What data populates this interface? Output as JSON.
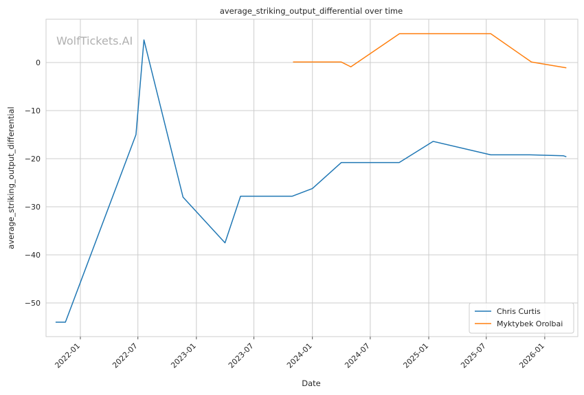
{
  "chart_data": {
    "type": "line",
    "title": "average_striking_output_differential over time",
    "xlabel": "Date",
    "ylabel": "average_striking_output_differential",
    "watermark": "WolfTickets.AI",
    "x_ticks": [
      "2022-01",
      "2022-07",
      "2023-01",
      "2023-07",
      "2024-01",
      "2024-07",
      "2025-01",
      "2025-07",
      "2026-01"
    ],
    "y_ticks": [
      -50,
      -40,
      -30,
      -20,
      -10,
      0
    ],
    "xlim": [
      "2021-09-15",
      "2026-04-15"
    ],
    "ylim": [
      -57,
      9
    ],
    "grid": true,
    "legend_position": "lower-right",
    "series": [
      {
        "name": "Chris Curtis",
        "color": "#1f77b4",
        "points": [
          [
            "2021-10-15",
            -54
          ],
          [
            "2021-11-15",
            -54
          ],
          [
            "2022-06-25",
            -15
          ],
          [
            "2022-07-20",
            4.7
          ],
          [
            "2022-11-20",
            -28
          ],
          [
            "2023-04-01",
            -37.5
          ],
          [
            "2023-05-20",
            -27.8
          ],
          [
            "2023-10-30",
            -27.8
          ],
          [
            "2024-01-01",
            -26.2
          ],
          [
            "2024-04-01",
            -20.8
          ],
          [
            "2024-09-30",
            -20.8
          ],
          [
            "2025-01-15",
            -16.4
          ],
          [
            "2025-07-15",
            -19.2
          ],
          [
            "2025-11-15",
            -19.2
          ],
          [
            "2026-03-01",
            -19.4
          ],
          [
            "2026-03-10",
            -19.6
          ]
        ]
      },
      {
        "name": "Myktybek Orolbai",
        "color": "#ff7f0e",
        "points": [
          [
            "2023-11-01",
            0.1
          ],
          [
            "2024-04-01",
            0.1
          ],
          [
            "2024-05-01",
            -0.9
          ],
          [
            "2024-10-01",
            6.0
          ],
          [
            "2025-07-15",
            6.0
          ],
          [
            "2025-11-20",
            0.1
          ],
          [
            "2026-03-10",
            -1.1
          ]
        ]
      }
    ]
  }
}
